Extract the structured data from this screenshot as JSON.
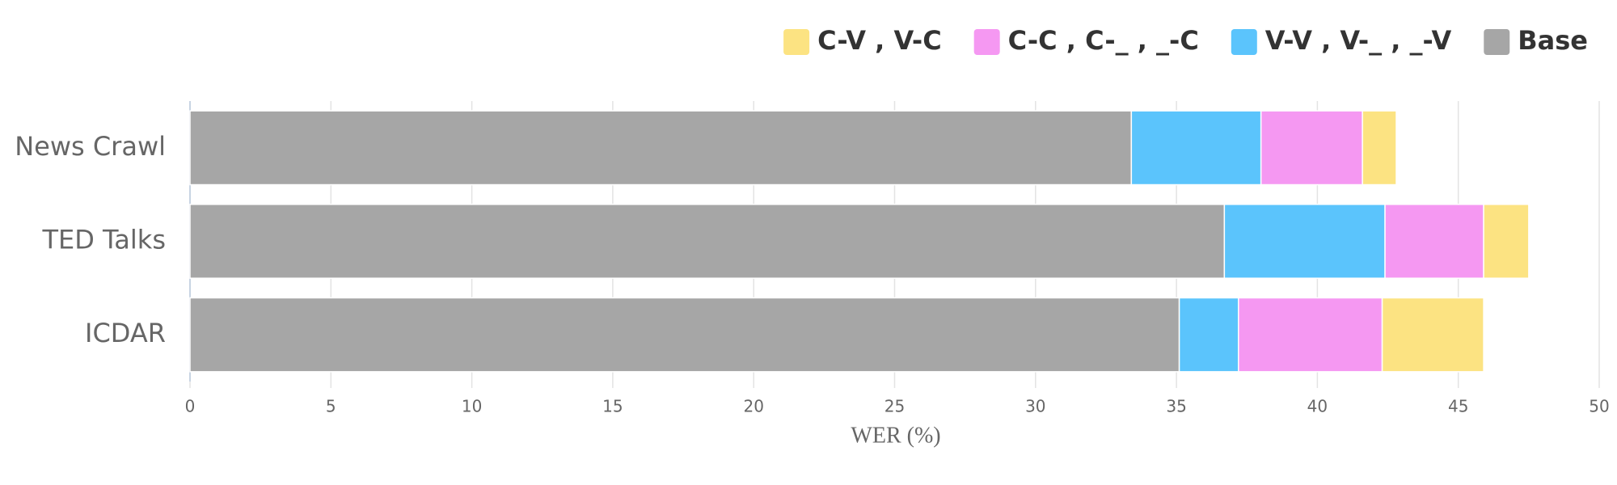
{
  "chart_data": {
    "type": "stacked-barh",
    "categories": [
      "News Crawl",
      "TED Talks",
      "ICDAR"
    ],
    "series": [
      {
        "name": "C-V , V-C",
        "color": "#fce382",
        "values": [
          1.2,
          1.6,
          3.6
        ]
      },
      {
        "name": "C-C , C-_ , _-C",
        "color": "#f598f2",
        "values": [
          3.6,
          3.5,
          5.1
        ]
      },
      {
        "name": "V-V , V-_ , _-V",
        "color": "#5bc4fc",
        "values": [
          4.6,
          5.7,
          2.1
        ]
      },
      {
        "name": "Base",
        "color": "#a6a6a6",
        "values": [
          33.4,
          36.7,
          35.1
        ]
      }
    ],
    "xlabel": "WER (%)",
    "xlim": [
      0,
      50
    ],
    "xticks": [
      0,
      5,
      10,
      15,
      20,
      25,
      30,
      35,
      40,
      45,
      50
    ],
    "grid": true,
    "legend": "top-right"
  }
}
